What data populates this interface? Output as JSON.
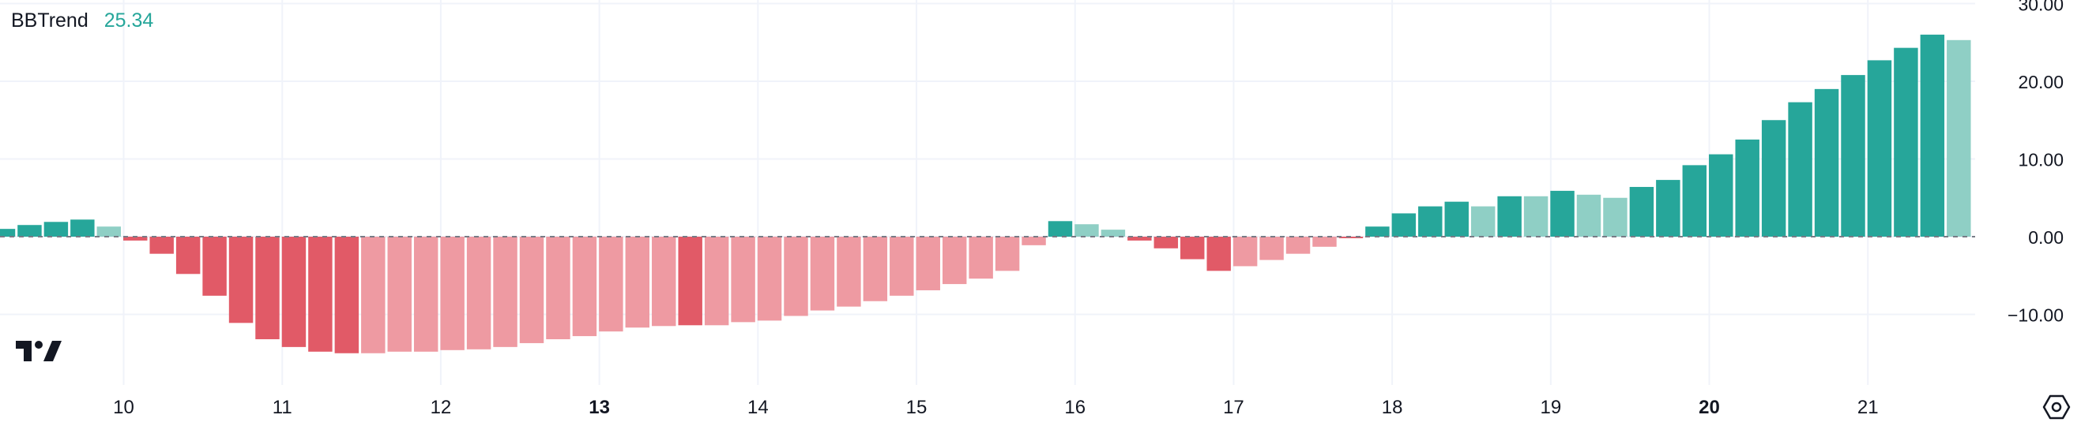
{
  "legend": {
    "name": "BBTrend",
    "value": "25.34",
    "value_color": "#26a69a"
  },
  "icons": {
    "logo": "tradingview-logo",
    "settings": "settings-hexagon-icon"
  },
  "colors": {
    "strong_up": "#26a69a",
    "weak_up": "#8fcfc5",
    "strong_down": "#e15a67",
    "weak_down": "#ee9aa2",
    "grid": "#f0f3fa",
    "text": "#131722"
  },
  "chart_data": {
    "type": "bar",
    "title": "BBTrend",
    "ylim": [
      -17,
      30
    ],
    "y_ticks": [
      "30.00",
      "20.00",
      "10.00",
      "0.00",
      "−10.00"
    ],
    "y_tick_values": [
      30,
      20,
      10,
      0,
      -10
    ],
    "x_ticks": [
      {
        "label": "10",
        "bar_index": 5,
        "bold": false
      },
      {
        "label": "11",
        "bar_index": 11,
        "bold": false
      },
      {
        "label": "12",
        "bar_index": 17,
        "bold": false
      },
      {
        "label": "13",
        "bar_index": 23,
        "bold": true
      },
      {
        "label": "14",
        "bar_index": 29,
        "bold": false
      },
      {
        "label": "15",
        "bar_index": 35,
        "bold": false
      },
      {
        "label": "16",
        "bar_index": 41,
        "bold": false
      },
      {
        "label": "17",
        "bar_index": 47,
        "bold": false
      },
      {
        "label": "18",
        "bar_index": 53,
        "bold": false
      },
      {
        "label": "19",
        "bar_index": 59,
        "bold": false
      },
      {
        "label": "20",
        "bar_index": 65,
        "bold": true
      },
      {
        "label": "21",
        "bar_index": 71,
        "bold": false
      }
    ],
    "grid": true,
    "zero_line": "dashed",
    "series": [
      {
        "values": [
          1.0,
          1.5,
          1.9,
          2.2,
          1.3,
          -0.5,
          -2.2,
          -4.8,
          -7.6,
          -11.1,
          -13.2,
          -14.2,
          -14.8,
          -15.0,
          -15.0,
          -14.8,
          -14.8,
          -14.6,
          -14.5,
          -14.2,
          -13.7,
          -13.2,
          -12.8,
          -12.2,
          -11.7,
          -11.5,
          -11.4,
          -11.4,
          -11.0,
          -10.8,
          -10.2,
          -9.5,
          -9.0,
          -8.3,
          -7.6,
          -6.9,
          -6.1,
          -5.4,
          -4.4,
          -1.1,
          2.0,
          1.6,
          0.9,
          -0.5,
          -1.5,
          -2.9,
          -4.4,
          -3.8,
          -3.0,
          -2.2,
          -1.3,
          -0.2,
          1.3,
          3.0,
          3.9,
          4.5,
          3.9,
          5.2,
          5.2,
          5.9,
          5.4,
          5.0,
          6.4,
          7.3,
          9.2,
          10.6,
          12.5,
          15.0,
          17.3,
          19.0,
          20.8,
          22.7,
          24.3,
          26.0,
          25.3
        ],
        "strength": [
          "s",
          "s",
          "s",
          "s",
          "w",
          "s",
          "s",
          "s",
          "s",
          "s",
          "s",
          "s",
          "s",
          "s",
          "w",
          "w",
          "w",
          "w",
          "w",
          "w",
          "w",
          "w",
          "w",
          "w",
          "w",
          "w",
          "s",
          "w",
          "w",
          "w",
          "w",
          "w",
          "w",
          "w",
          "w",
          "w",
          "w",
          "w",
          "w",
          "w",
          "s",
          "w",
          "w",
          "s",
          "s",
          "s",
          "s",
          "w",
          "w",
          "w",
          "w",
          "s",
          "s",
          "s",
          "s",
          "s",
          "w",
          "s",
          "w",
          "s",
          "w",
          "w",
          "s",
          "s",
          "s",
          "s",
          "s",
          "s",
          "s",
          "s",
          "s",
          "s",
          "s",
          "s",
          "w"
        ]
      }
    ]
  }
}
